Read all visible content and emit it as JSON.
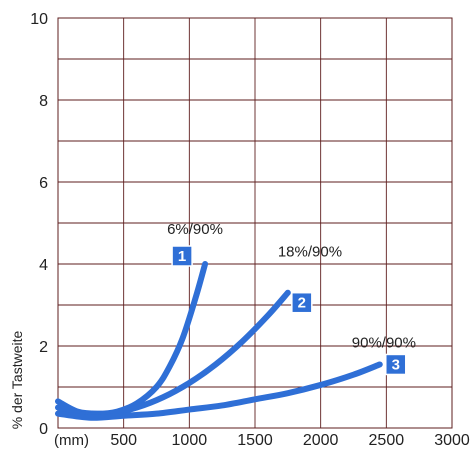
{
  "chart_data": {
    "type": "line",
    "title": "",
    "xlabel": "",
    "ylabel": "% der Tastweite",
    "x_unit_label": "(mm)",
    "xlim": [
      0,
      3000
    ],
    "ylim": [
      0,
      10
    ],
    "x_ticks": [
      500,
      1000,
      1500,
      2000,
      2500,
      3000
    ],
    "y_ticks": [
      0,
      2,
      4,
      6,
      8,
      10
    ],
    "grid": true,
    "line_color": "#2f6fd6",
    "badge_color": "#2f6fd6",
    "series": [
      {
        "name": "6%/90%",
        "badge": "1",
        "x": [
          0,
          150,
          300,
          450,
          600,
          750,
          850,
          950,
          1050,
          1120
        ],
        "y": [
          0.65,
          0.4,
          0.35,
          0.4,
          0.6,
          1.0,
          1.5,
          2.2,
          3.2,
          4.0
        ]
      },
      {
        "name": "18%/90%",
        "badge": "2",
        "x": [
          0,
          200,
          400,
          600,
          800,
          1000,
          1200,
          1400,
          1600,
          1750
        ],
        "y": [
          0.5,
          0.32,
          0.35,
          0.5,
          0.75,
          1.1,
          1.55,
          2.1,
          2.75,
          3.3
        ]
      },
      {
        "name": "90%/90%",
        "badge": "3",
        "x": [
          0,
          250,
          500,
          750,
          1000,
          1250,
          1500,
          1750,
          2000,
          2250,
          2450
        ],
        "y": [
          0.35,
          0.25,
          0.3,
          0.35,
          0.45,
          0.55,
          0.7,
          0.85,
          1.05,
          1.3,
          1.55
        ]
      }
    ]
  }
}
